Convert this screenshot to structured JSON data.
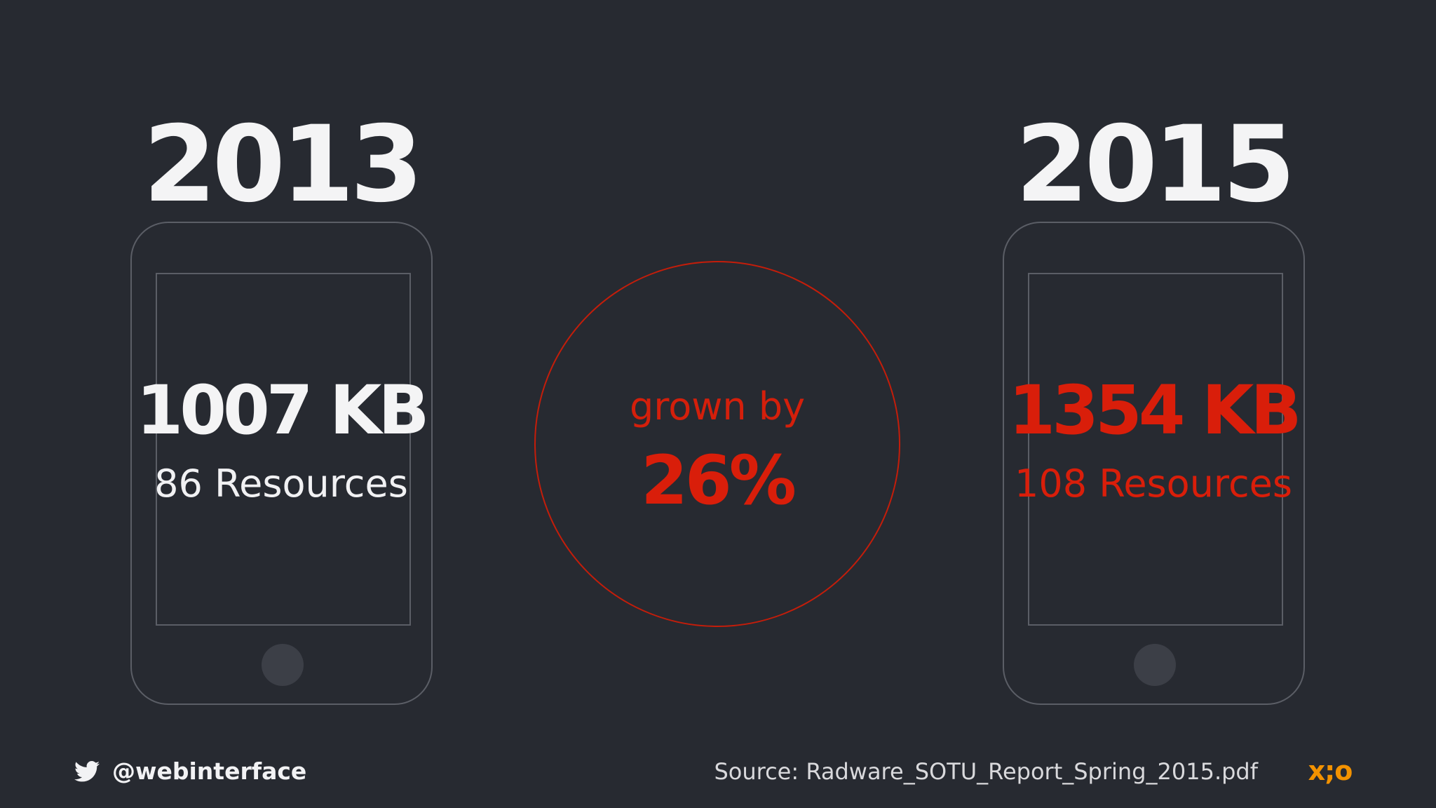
{
  "left": {
    "year": "2013",
    "size": "1007 KB",
    "resources": "86 Resources"
  },
  "right": {
    "year": "2015",
    "size": "1354 KB",
    "resources": "108 Resources"
  },
  "growth": {
    "label": "grown by",
    "value": "26%"
  },
  "footer": {
    "twitter_handle": "@webinterface",
    "source": "Source: Radware_SOTU_Report_Spring_2015.pdf",
    "logo": "x;o"
  },
  "icons": {
    "twitter": "twitter-bird-icon",
    "phone": "smartphone-outline-icon"
  },
  "colors": {
    "background": "#272a31",
    "highlight": "#d91e0a",
    "text": "#f4f4f5",
    "outline": "#5b5e66",
    "logo": "#f39200"
  }
}
